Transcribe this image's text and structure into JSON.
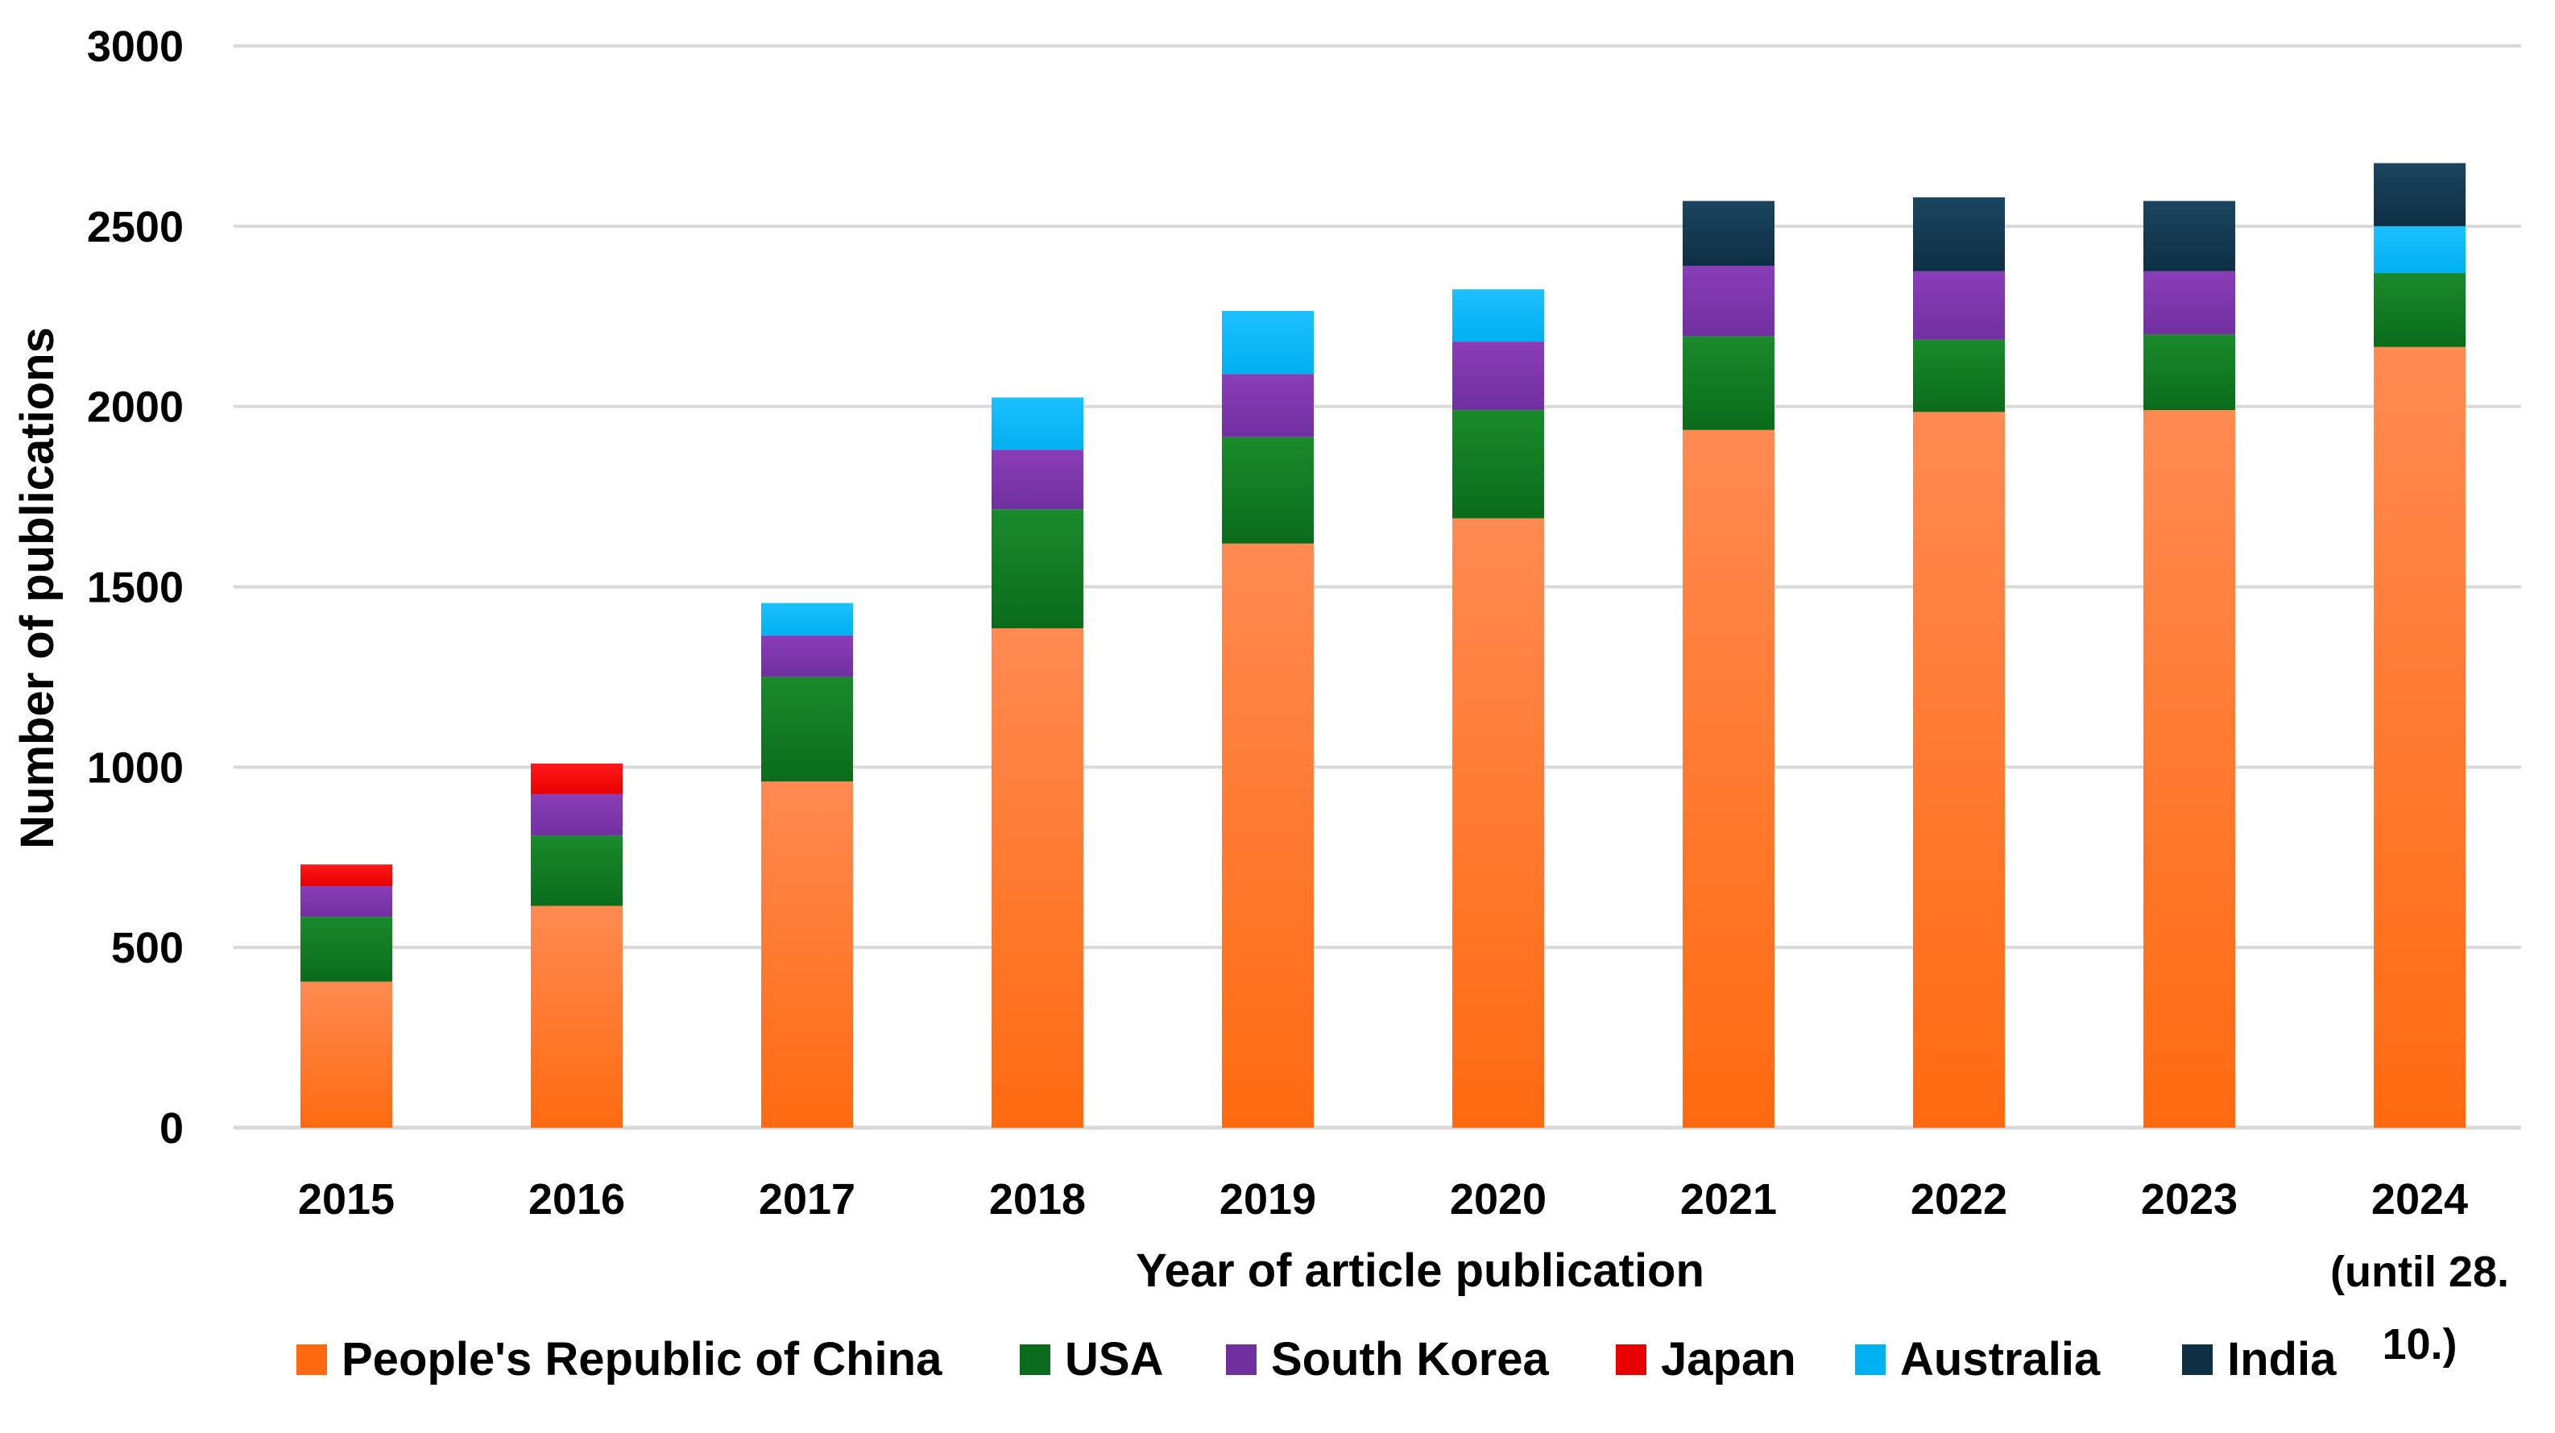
{
  "chart_data": {
    "type": "bar",
    "stacked": true,
    "title": "",
    "xlabel": "Year of article publication",
    "ylabel": "Number of  publications",
    "ylim": [
      0,
      3000
    ],
    "yticks": [
      0,
      500,
      1000,
      1500,
      2000,
      2500,
      3000
    ],
    "grid": true,
    "legend_position": "bottom",
    "categories": [
      [
        "2015"
      ],
      [
        "2016"
      ],
      [
        "2017"
      ],
      [
        "2018"
      ],
      [
        "2019"
      ],
      [
        "2020"
      ],
      [
        "2021"
      ],
      [
        "2022"
      ],
      [
        "2023"
      ],
      [
        "2024",
        "(until 28.",
        "10.)"
      ]
    ],
    "series": [
      {
        "name": "People's Republic of China",
        "color": "#ff6a10",
        "color_light": "#ff8a52",
        "values": [
          405,
          615,
          960,
          1385,
          1620,
          1690,
          1935,
          1985,
          1990,
          2165
        ]
      },
      {
        "name": "USA",
        "color": "#0b6b1c",
        "color_light": "#1a8a2c",
        "values": [
          180,
          195,
          290,
          330,
          295,
          300,
          260,
          200,
          210,
          205
        ]
      },
      {
        "name": "South Korea",
        "color": "#7030a0",
        "color_light": "#8a3db8",
        "values": [
          85,
          115,
          115,
          165,
          175,
          190,
          195,
          190,
          175,
          0
        ]
      },
      {
        "name": "Japan",
        "color": "#e60000",
        "color_light": "#ff1a1a",
        "values": [
          60,
          85,
          0,
          0,
          0,
          0,
          0,
          0,
          0,
          0
        ]
      },
      {
        "name": "Australia",
        "color": "#00b0f0",
        "color_light": "#1ec0ff",
        "values": [
          0,
          0,
          90,
          145,
          175,
          145,
          0,
          0,
          0,
          130
        ]
      },
      {
        "name": "India",
        "color": "#0e2f44",
        "color_light": "#1a4560",
        "values": [
          0,
          0,
          0,
          0,
          0,
          0,
          180,
          205,
          195,
          175
        ]
      }
    ]
  }
}
